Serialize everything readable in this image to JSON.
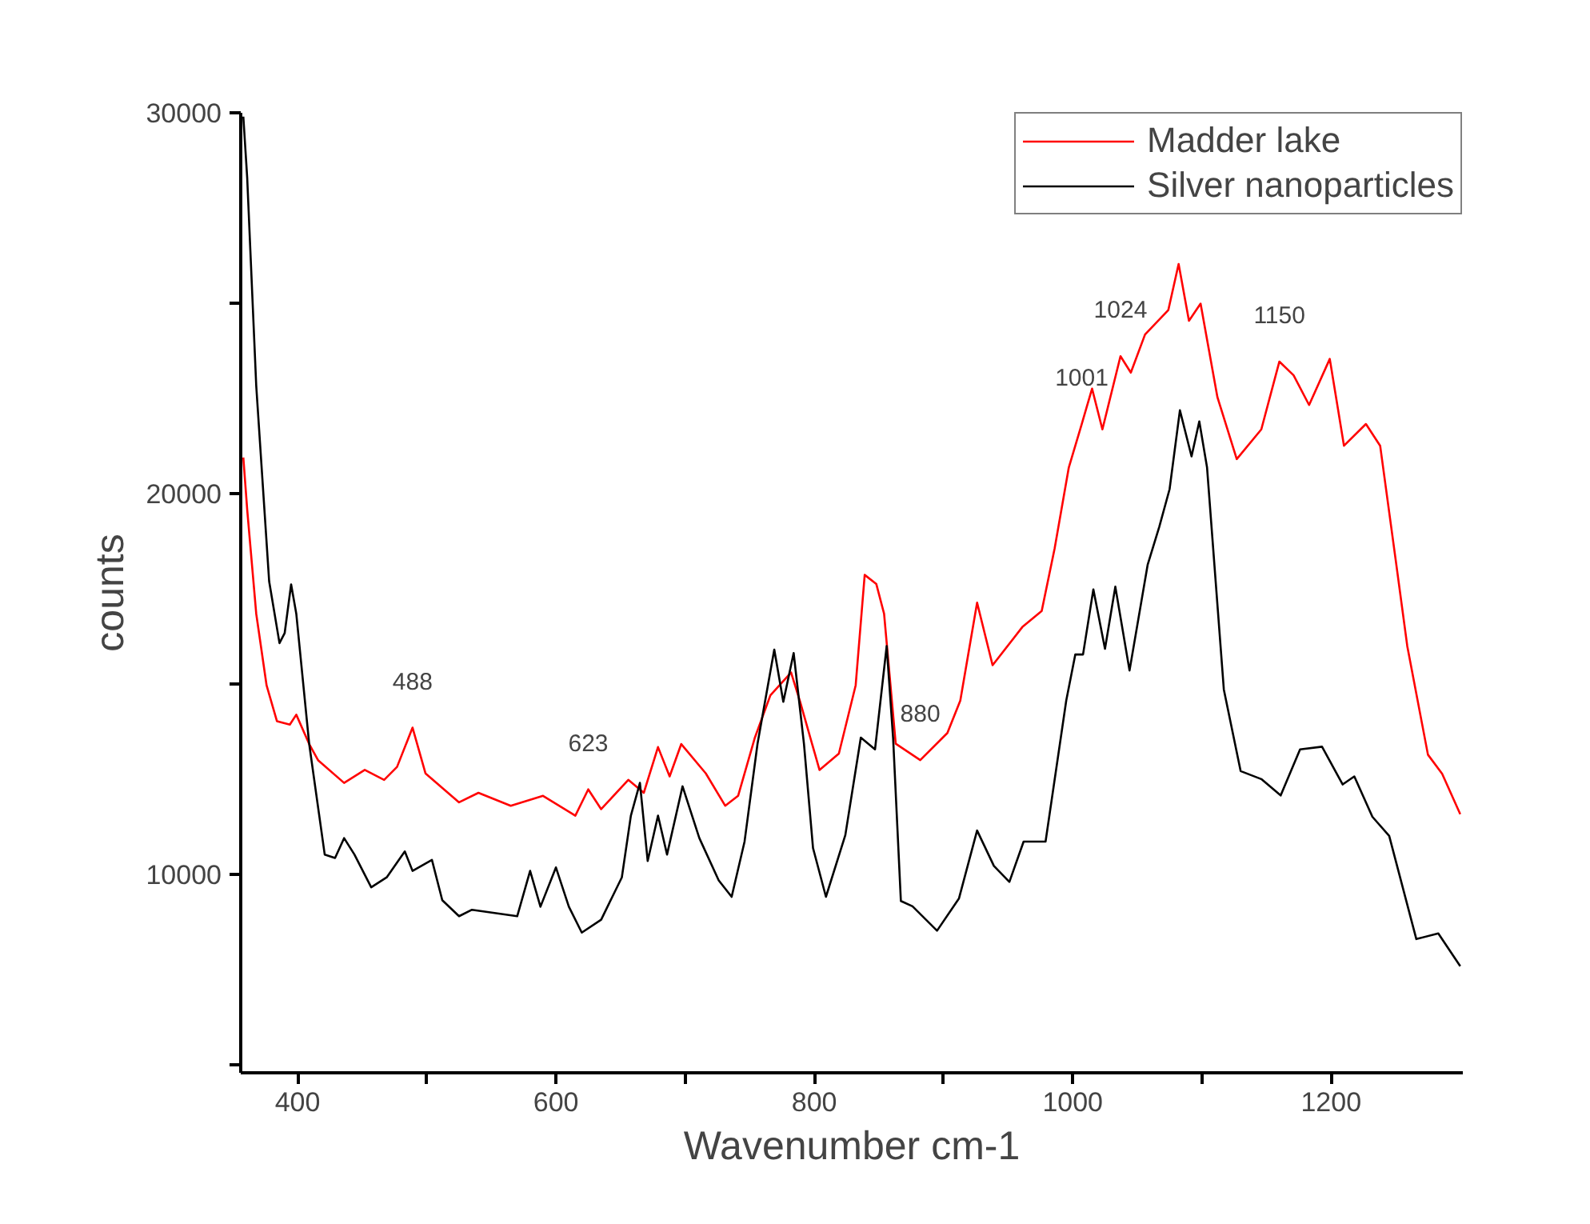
{
  "chart_data": {
    "type": "line",
    "xlabel": "Wavenumber cm-1",
    "ylabel": "counts",
    "xlim": [
      356,
      1302
    ],
    "ylim": [
      4800,
      30000
    ],
    "xticks": [
      400,
      {
        "value": 500,
        "label": null
      },
      600,
      {
        "value": 700,
        "label": null
      },
      800,
      {
        "value": 900,
        "label": null
      },
      1000,
      {
        "value": 1100,
        "label": null
      },
      1200
    ],
    "yticks": [
      {
        "value": 5000,
        "label": null
      },
      10000,
      {
        "value": 15000,
        "label": null
      },
      20000,
      {
        "value": 25000,
        "label": null
      },
      30000
    ],
    "grid": false,
    "legend": "top right",
    "line_style": "solid",
    "marker": "none",
    "series": [
      {
        "name": "Madder lake",
        "color": "#ff0000",
        "x": [
          358,
          361,
          368,
          376,
          384,
          394,
          399,
          409,
          416,
          436,
          452,
          467,
          477,
          489,
          499,
          525,
          540,
          565,
          590,
          615,
          625,
          635,
          656,
          668,
          679,
          688,
          697,
          716,
          731,
          741,
          754,
          766,
          782,
          789,
          804,
          819,
          832,
          839,
          848,
          854,
          863,
          882,
          903,
          913,
          926,
          938,
          961,
          976,
          986,
          997,
          1007,
          1015,
          1023,
          1037,
          1045,
          1056,
          1074,
          1082,
          1090,
          1099,
          1112,
          1127,
          1146,
          1160,
          1171,
          1183,
          1199,
          1210,
          1227,
          1238,
          1250,
          1259,
          1275,
          1286,
          1300
        ],
        "values": [
          20950,
          19580,
          16850,
          14970,
          14030,
          13940,
          14200,
          13430,
          13000,
          12410,
          12750,
          12490,
          12830,
          13860,
          12660,
          11900,
          12150,
          11810,
          12070,
          11550,
          12240,
          11720,
          12490,
          12150,
          13350,
          12580,
          13430,
          12660,
          11810,
          12070,
          13600,
          14710,
          15310,
          14540,
          12750,
          13180,
          14970,
          17870,
          17630,
          16850,
          13440,
          13010,
          13720,
          14570,
          17140,
          15500,
          16500,
          16920,
          18560,
          20690,
          21830,
          22760,
          21690,
          23610,
          23180,
          24180,
          24820,
          26030,
          24540,
          24990,
          22540,
          20910,
          21690,
          23470,
          23110,
          22330,
          23540,
          21260,
          21830,
          21260,
          18270,
          16000,
          13150,
          12650,
          11590
        ]
      },
      {
        "name": "Silver nanoparticles",
        "color": "#000000",
        "x": [
          358,
          361,
          368,
          378,
          386,
          390,
          395,
          399,
          409,
          421,
          429,
          436,
          444,
          457,
          469,
          483,
          489,
          504,
          512,
          525,
          535,
          570,
          580,
          588,
          600,
          610,
          620,
          635,
          651,
          658,
          665,
          671,
          679,
          686,
          698,
          711,
          726,
          736,
          746,
          756,
          769,
          776,
          784,
          792,
          799,
          809,
          824,
          836,
          847,
          856,
          861,
          867,
          876,
          895,
          912,
          926,
          939,
          951,
          962,
          979,
          995,
          1002,
          1008,
          1016,
          1025,
          1033,
          1044,
          1058,
          1067,
          1075,
          1083,
          1092,
          1098,
          1104,
          1117,
          1130,
          1146,
          1161,
          1176,
          1193,
          1209,
          1218,
          1232,
          1245,
          1266,
          1283,
          1300
        ],
        "values": [
          29900,
          28290,
          22830,
          17700,
          16080,
          16340,
          17620,
          16850,
          13430,
          10530,
          10440,
          10960,
          10530,
          9670,
          9930,
          10610,
          10100,
          10390,
          9330,
          8910,
          9080,
          8910,
          10100,
          9160,
          10190,
          9160,
          8480,
          8820,
          9930,
          11550,
          12410,
          10360,
          11550,
          10530,
          12320,
          10960,
          9850,
          9420,
          10870,
          13430,
          15910,
          14540,
          15820,
          13430,
          10700,
          9420,
          11040,
          13600,
          13290,
          16000,
          13580,
          9310,
          9170,
          8530,
          9380,
          11160,
          10230,
          9810,
          10870,
          10870,
          14570,
          15780,
          15780,
          17490,
          15930,
          17560,
          15360,
          18130,
          19130,
          20120,
          22190,
          20980,
          21900,
          20690,
          14860,
          12720,
          12510,
          12080,
          13290,
          13360,
          12370,
          12580,
          11520,
          11020,
          8310,
          8460,
          7600
        ]
      }
    ],
    "annotations": [
      {
        "text": "488",
        "x": 489,
        "y": 13860
      },
      {
        "text": "623",
        "x": 625,
        "y": 12240
      },
      {
        "text": "880",
        "x": 882,
        "y": 13010
      },
      {
        "text": "1001",
        "x": 1007,
        "y": 21830
      },
      {
        "text": "1024",
        "x": 1037,
        "y": 23610
      },
      {
        "text": "1150",
        "x": 1160,
        "y": 23470
      }
    ]
  }
}
